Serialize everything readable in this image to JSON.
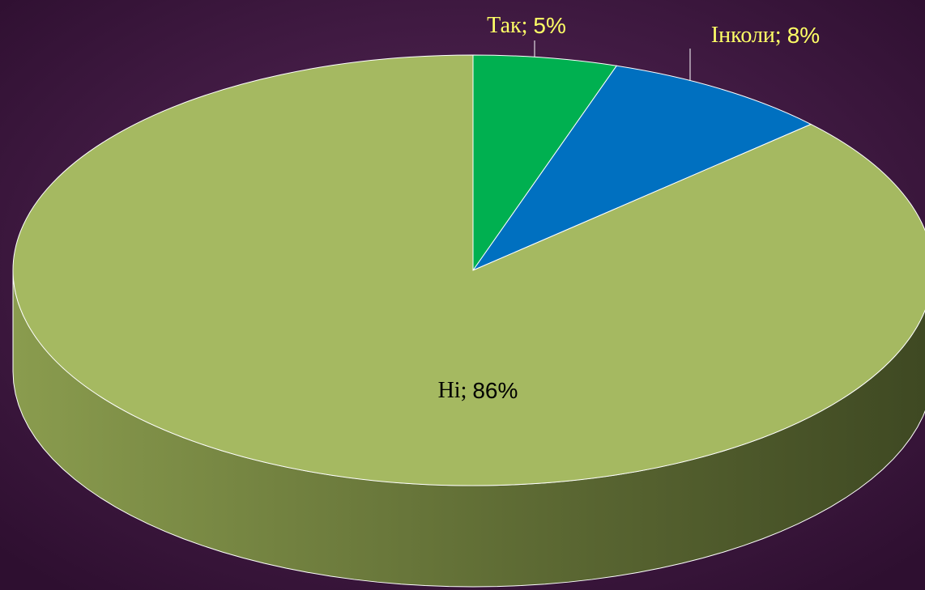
{
  "chart_data": {
    "type": "pie",
    "categories": [
      "Так",
      "Інколи",
      "Ні"
    ],
    "values": [
      5,
      8,
      86
    ],
    "value_labels": [
      "5%",
      "8%",
      "86%"
    ],
    "separator": "; ",
    "colors": [
      "#00b050",
      "#0070c0",
      "#a5b961"
    ],
    "label_colors": [
      "#ffff66",
      "#ffff66",
      "#000000"
    ]
  }
}
